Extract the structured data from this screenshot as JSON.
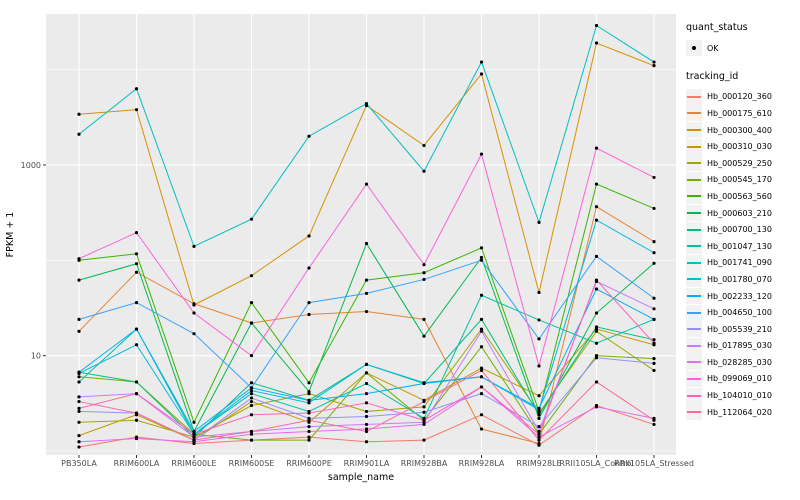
{
  "chart_data": {
    "type": "line",
    "title": "",
    "xlabel": "sample_name",
    "ylabel": "FPKM + 1",
    "y_scale": "log10",
    "ylim": [
      1,
      40000
    ],
    "grid": true,
    "panel_background": "#EBEBEB",
    "gridline_color": "#FFFFFF",
    "point_color": "#000000",
    "tick_label_color": "#4D4D4D",
    "y_tick_labels": [
      {
        "label": "1000",
        "value": 1000
      },
      {
        "label": "10",
        "value": 10
      }
    ],
    "y_major_gridlines": [
      10,
      1000
    ],
    "y_minor_gridlines": [
      1,
      100,
      10000
    ],
    "categories": [
      "PB350LA",
      "RRIM600LA",
      "RRIM600LE",
      "RRIM600SE",
      "RRIM600PE",
      "RRIM901LA",
      "RRIM928BA",
      "RRIM928LA",
      "RRIM928LE",
      "RRII105LA_Control",
      "RRII105LA_Stressed"
    ],
    "legend": {
      "position": "right",
      "quant_status_title": "quant_status",
      "quant_status_items": [
        {
          "label": "OK",
          "marker": "point",
          "color": "#000000"
        }
      ],
      "tracking_id_title": "tracking_id"
    },
    "series": [
      {
        "name": "Hb_000120_360",
        "color": "#F8766D",
        "values": [
          1.1,
          1.4,
          1.2,
          1.3,
          1.4,
          1.25,
          1.3,
          2.4,
          1.15,
          3.0,
          1.9
        ]
      },
      {
        "name": "Hb_000175_610",
        "color": "#EA8331",
        "values": [
          18,
          75,
          35,
          22,
          27,
          29,
          24,
          1.7,
          1.2,
          365,
          157
        ]
      },
      {
        "name": "Hb_000300_400",
        "color": "#D89000",
        "values": [
          3400,
          3800,
          34,
          69,
          180,
          4200,
          1600,
          9000,
          46,
          19000,
          11000
        ]
      },
      {
        "name": "Hb_000310_030",
        "color": "#C49A00",
        "values": [
          1.45,
          2.4,
          1.3,
          3.3,
          2.0,
          6.6,
          3.4,
          7.4,
          3.8,
          19,
          13
        ]
      },
      {
        "name": "Hb_000529_250",
        "color": "#A3A500",
        "values": [
          2.0,
          2.1,
          1.4,
          3.0,
          4.0,
          2.6,
          2.9,
          19,
          2.5,
          18,
          7.0
        ]
      },
      {
        "name": "Hb_000545_170",
        "color": "#71B000",
        "values": [
          6.0,
          5.3,
          1.5,
          1.3,
          1.3,
          6.6,
          2.1,
          12.4,
          1.5,
          10,
          9.3
        ]
      },
      {
        "name": "Hb_000563_560",
        "color": "#39B600",
        "values": [
          100,
          117,
          2.0,
          36,
          5.2,
          62,
          74,
          135,
          2.6,
          630,
          350
        ]
      },
      {
        "name": "Hb_000603_210",
        "color": "#00BB4E",
        "values": [
          62,
          92,
          1.6,
          22,
          4.2,
          150,
          16,
          107,
          2.2,
          28,
          93
        ]
      },
      {
        "name": "Hb_000700_130",
        "color": "#00BF7D",
        "values": [
          6.7,
          5.3,
          1.4,
          5.2,
          3.4,
          8.1,
          5.1,
          24,
          2.4,
          20,
          14.7
        ]
      },
      {
        "name": "Hb_001047_130",
        "color": "#00C1A3",
        "values": [
          5.3,
          19,
          1.5,
          4.0,
          2.6,
          5.1,
          2.2,
          43,
          23.7,
          13.5,
          24
        ]
      },
      {
        "name": "Hb_001741_090",
        "color": "#00BFC4",
        "values": [
          2100,
          6300,
          140,
          270,
          2000,
          4400,
          860,
          12000,
          250,
          29000,
          12000
        ]
      },
      {
        "name": "Hb_001780_070",
        "color": "#00BAE0",
        "values": [
          6.5,
          13,
          1.5,
          4.3,
          3.2,
          8.1,
          5.2,
          6.0,
          2.7,
          264,
          120
        ]
      },
      {
        "name": "Hb_002233_120",
        "color": "#00B0F6",
        "values": [
          6.7,
          19,
          1.6,
          4.6,
          3.4,
          4.0,
          5.1,
          6.0,
          2.8,
          50,
          24
        ]
      },
      {
        "name": "Hb_004650_100",
        "color": "#35A2FF",
        "values": [
          24,
          36,
          17,
          4.6,
          36,
          45,
          63,
          100,
          15,
          110,
          40
        ]
      },
      {
        "name": "Hb_005539_210",
        "color": "#9590FF",
        "values": [
          2.6,
          2.5,
          1.3,
          3.6,
          2.2,
          2.3,
          2.55,
          4.0,
          1.8,
          9.5,
          8.3
        ]
      },
      {
        "name": "Hb_017895_030",
        "color": "#C77CFF",
        "values": [
          3.7,
          4.0,
          1.4,
          1.6,
          1.8,
          1.9,
          2.0,
          18,
          1.6,
          60,
          31
        ]
      },
      {
        "name": "Hb_028285_030",
        "color": "#E76BF3",
        "values": [
          1.25,
          1.35,
          1.25,
          1.5,
          1.6,
          1.7,
          1.9,
          4.7,
          1.4,
          2.9,
          2.2
        ]
      },
      {
        "name": "Hb_099069_010",
        "color": "#FA62DB",
        "values": [
          104,
          195,
          28,
          10,
          83,
          630,
          90,
          1300,
          7.8,
          1500,
          740
        ]
      },
      {
        "name": "Hb_104010_010",
        "color": "#FF62BC",
        "values": [
          2.8,
          4.0,
          1.5,
          2.4,
          2.5,
          3.2,
          2.1,
          4.7,
          1.5,
          62,
          13.5
        ]
      },
      {
        "name": "Hb_112064_020",
        "color": "#FF6A98",
        "values": [
          3.3,
          2.5,
          1.3,
          1.6,
          2.1,
          1.6,
          3.3,
          7.0,
          1.3,
          5.3,
          2.1
        ]
      }
    ]
  }
}
